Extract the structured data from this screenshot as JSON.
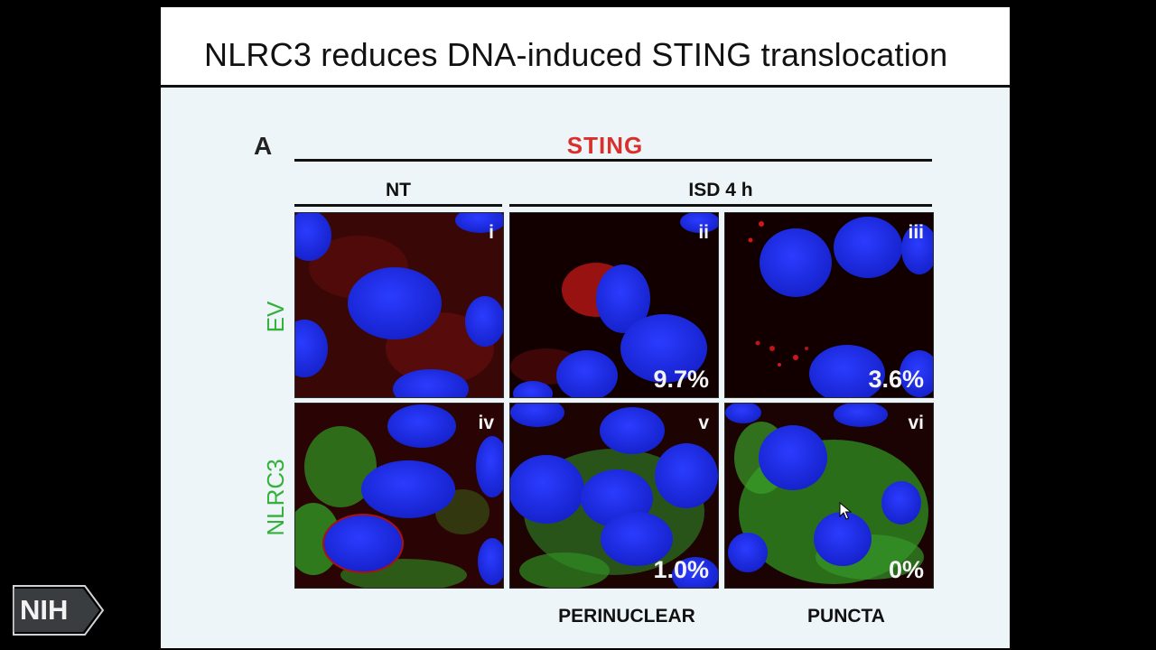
{
  "slide": {
    "title": "NLRC3 reduces DNA-induced STING translocation",
    "panel_letter": "A",
    "stain_label": "STING",
    "column_headers": {
      "nt": "NT",
      "isd": "ISD 4 h"
    },
    "row_labels": {
      "ev": "EV",
      "nlrc3": "NLRC3"
    },
    "tiles": [
      {
        "roman": "i",
        "percent": ""
      },
      {
        "roman": "ii",
        "percent": "9.7%"
      },
      {
        "roman": "iii",
        "percent": "3.6%"
      },
      {
        "roman": "iv",
        "percent": ""
      },
      {
        "roman": "v",
        "percent": "1.0%"
      },
      {
        "roman": "vi",
        "percent": "0%"
      }
    ],
    "bottom_labels": {
      "perinuclear": "PERINUCLEAR",
      "puncta": "PUNCTA"
    }
  },
  "logo": {
    "text": "NIH"
  },
  "colors": {
    "sting_red": "#d9302c",
    "nlrc3_green": "#33b13a",
    "nucleus_blue": "#1e2ff0",
    "slide_background": "#eef5f8"
  },
  "icons": [
    "mouse-pointer-icon",
    "nih-logo"
  ]
}
